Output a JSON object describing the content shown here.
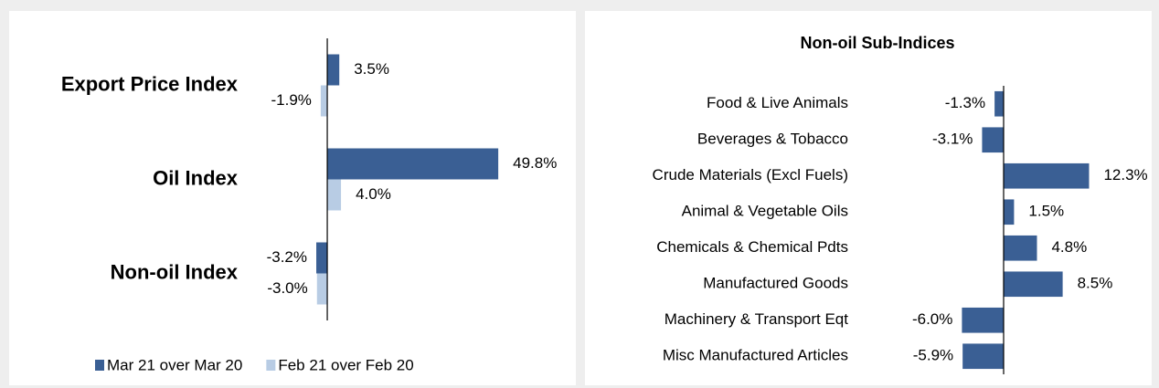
{
  "chart_data": [
    {
      "type": "bar",
      "orientation": "horizontal",
      "categories": [
        "Export Price Index",
        "Oil Index",
        "Non-oil Index"
      ],
      "series": [
        {
          "name": "Mar 21 over Mar 20",
          "color": "#3a5f94",
          "values": [
            3.5,
            49.8,
            -3.2
          ],
          "value_labels": [
            "3.5%",
            "49.8%",
            "-3.2%"
          ]
        },
        {
          "name": "Feb 21 over Feb 20",
          "color": "#b8cce4",
          "values": [
            -1.9,
            4.0,
            -3.0
          ],
          "value_labels": [
            "-1.9%",
            "4.0%",
            "-3.0%"
          ]
        }
      ],
      "xlim": [
        -15,
        70
      ],
      "legend": "bottom"
    },
    {
      "type": "bar",
      "orientation": "horizontal",
      "title": "Non-oil Sub-Indices",
      "categories": [
        "Food & Live Animals",
        "Beverages & Tobacco",
        "Crude Materials (Excl Fuels)",
        "Animal & Vegetable Oils",
        "Chemicals & Chemical Pdts",
        "Manufactured Goods",
        "Machinery & Transport Eqt",
        "Misc Manufactured Articles"
      ],
      "values": [
        -1.3,
        -3.1,
        12.3,
        1.5,
        4.8,
        8.5,
        -6.0,
        -5.9
      ],
      "value_labels": [
        "-1.3%",
        "-3.1%",
        "12.3%",
        "1.5%",
        "4.8%",
        "8.5%",
        "-6.0%",
        "-5.9%"
      ],
      "color": "#3a5f94",
      "xlim": [
        -10,
        16
      ]
    }
  ]
}
